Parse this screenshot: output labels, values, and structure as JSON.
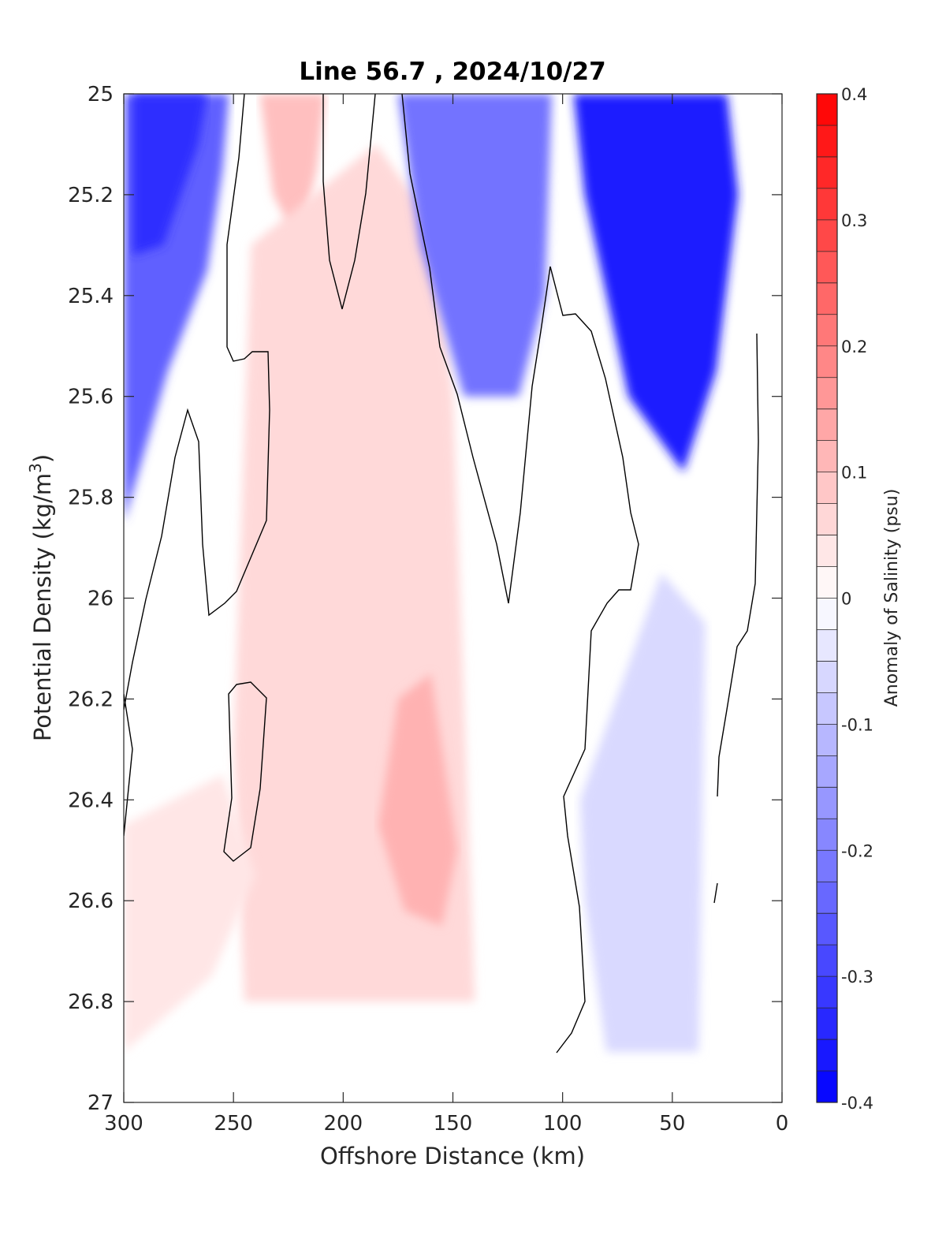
{
  "chart_data": {
    "type": "heatmap",
    "title": "Line 56.7 , 2024/10/27",
    "xlabel": "Offshore Distance (km)",
    "ylabel_main": "Potential Density (kg/m",
    "ylabel_sup": "3",
    "ylabel_close": ")",
    "xlim": [
      300,
      0
    ],
    "ylim": [
      25,
      27
    ],
    "x_reversed": true,
    "y_reversed": true,
    "x_ticks": [
      300,
      250,
      200,
      150,
      100,
      50,
      0
    ],
    "x_tick_labels": [
      "300",
      "250",
      "200",
      "150",
      "100",
      "50",
      "0"
    ],
    "y_ticks": [
      25,
      25.2,
      25.4,
      25.6,
      25.8,
      26,
      26.2,
      26.4,
      26.6,
      26.8,
      27
    ],
    "y_tick_labels": [
      "25",
      "25.2",
      "25.4",
      "25.6",
      "25.8",
      "26",
      "26.2",
      "26.4",
      "26.6",
      "26.8",
      "27"
    ],
    "colorbar": {
      "label": "Anomaly of Salinity (psu)",
      "min": -0.4,
      "max": 0.4,
      "levels": 32,
      "tick_values": [
        0.4,
        0.3,
        0.2,
        0.1,
        0,
        -0.1,
        -0.2,
        -0.3,
        -0.4
      ],
      "tick_labels": [
        "0.4",
        "0.3",
        "0.2",
        "0.1",
        "0",
        "-0.1",
        "-0.2",
        "-0.3",
        "-0.4"
      ],
      "neg_color": "#0000ff",
      "pos_color": "#ff0000",
      "zero_color": "#ffffff"
    },
    "zero_contour_color": "#000000",
    "anomaly_regions": [
      {
        "label": "near-surface negative offshore",
        "value": -0.25,
        "polygon": [
          [
            300,
            25
          ],
          [
            252,
            25
          ],
          [
            255,
            25.15
          ],
          [
            262,
            25.35
          ],
          [
            280,
            25.55
          ],
          [
            300,
            25.85
          ]
        ]
      },
      {
        "label": "negative offshore core",
        "value": -0.33,
        "polygon": [
          [
            296,
            25
          ],
          [
            262,
            25
          ],
          [
            266,
            25.1
          ],
          [
            282,
            25.3
          ],
          [
            296,
            25.32
          ]
        ]
      },
      {
        "label": "positive near-surface 230 km",
        "value": 0.1,
        "polygon": [
          [
            238,
            25
          ],
          [
            208,
            25
          ],
          [
            212,
            25.15
          ],
          [
            220,
            25.3
          ],
          [
            232,
            25.2
          ]
        ]
      },
      {
        "label": "positive column 180-200 km",
        "value": 0.06,
        "polygon": [
          [
            242,
            25.3
          ],
          [
            185,
            25.1
          ],
          [
            160,
            25.25
          ],
          [
            150,
            25.6
          ],
          [
            140,
            26.8
          ],
          [
            245,
            26.8
          ],
          [
            250,
            26.3
          ]
        ]
      },
      {
        "label": "positive core 165 km",
        "value": 0.12,
        "polygon": [
          [
            175,
            26.2
          ],
          [
            160,
            26.15
          ],
          [
            148,
            26.5
          ],
          [
            155,
            26.65
          ],
          [
            172,
            26.62
          ],
          [
            184,
            26.45
          ]
        ]
      },
      {
        "label": "negative near-surface 130 km",
        "value": -0.22,
        "polygon": [
          [
            175,
            25
          ],
          [
            105,
            25
          ],
          [
            108,
            25.4
          ],
          [
            120,
            25.6
          ],
          [
            145,
            25.6
          ],
          [
            165,
            25.3
          ]
        ]
      },
      {
        "label": "negative near-surface 50 km",
        "value": -0.36,
        "polygon": [
          [
            95,
            25
          ],
          [
            25,
            25
          ],
          [
            20,
            25.2
          ],
          [
            30,
            25.55
          ],
          [
            45,
            25.75
          ],
          [
            70,
            25.6
          ],
          [
            90,
            25.2
          ]
        ]
      },
      {
        "label": "negative deep 60 km",
        "value": -0.06,
        "polygon": [
          [
            92,
            26.4
          ],
          [
            55,
            25.95
          ],
          [
            35,
            26.05
          ],
          [
            38,
            26.9
          ],
          [
            80,
            26.9
          ],
          [
            90,
            26.6
          ]
        ]
      },
      {
        "label": "positive deep 280 km",
        "value": 0.04,
        "polygon": [
          [
            300,
            26.45
          ],
          [
            255,
            26.35
          ],
          [
            240,
            26.55
          ],
          [
            260,
            26.75
          ],
          [
            300,
            26.9
          ]
        ]
      }
    ]
  }
}
